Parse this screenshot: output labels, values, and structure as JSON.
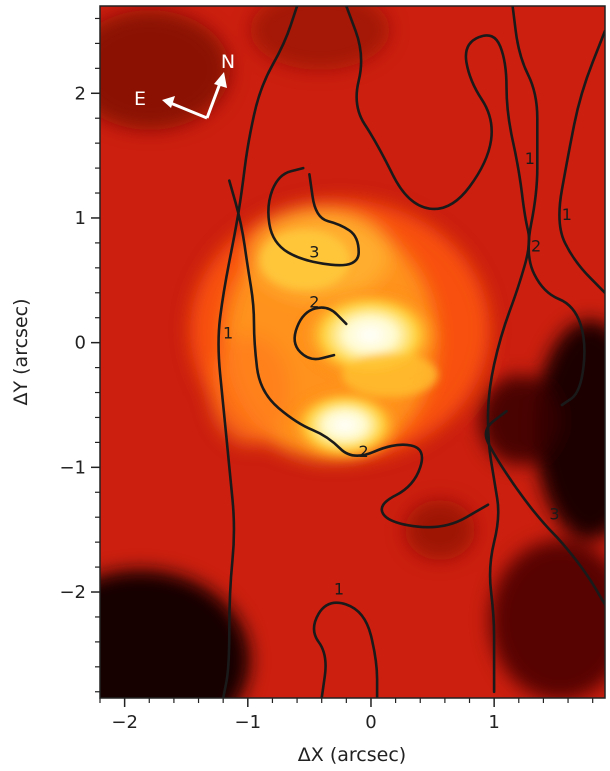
{
  "chart_data": {
    "type": "heatmap",
    "xlabel": "ΔX (arcsec)",
    "ylabel": "ΔY (arcsec)",
    "xlim": [
      -2.2,
      1.9
    ],
    "ylim": [
      -2.85,
      2.7
    ],
    "x_ticks": [
      -2,
      -1,
      0,
      1
    ],
    "y_ticks": [
      -2,
      -1,
      0,
      1,
      2
    ],
    "x_tick_labels": [
      "−2",
      "−1",
      "0",
      "1"
    ],
    "y_tick_labels": [
      "−2",
      "−1",
      "0",
      "1",
      "2"
    ],
    "colormap": "hot",
    "colors": {
      "dark": "#120000",
      "mid": "#d62410",
      "bright": "#fff2a0",
      "peak": "#ffffff"
    },
    "bright_peaks": [
      {
        "x": 0.05,
        "y": 0.05,
        "intensity": 1.0
      },
      {
        "x": -0.2,
        "y": -0.62,
        "intensity": 0.95
      }
    ],
    "compass": {
      "north_label": "N",
      "east_label": "E"
    },
    "contour_levels": [
      "1",
      "2",
      "3"
    ],
    "contours": [
      {
        "level": "1",
        "points": [
          [
            -0.6,
            2.7
          ],
          [
            -0.7,
            2.4
          ],
          [
            -0.9,
            2.05
          ],
          [
            -1.0,
            1.6
          ],
          [
            -1.05,
            1.2
          ],
          [
            -1.1,
            0.9
          ],
          [
            -1.2,
            0.4
          ],
          [
            -1.25,
            0.0
          ],
          [
            -1.2,
            -0.5
          ],
          [
            -1.15,
            -1.0
          ],
          [
            -1.1,
            -1.5
          ],
          [
            -1.15,
            -2.0
          ],
          [
            -1.15,
            -2.6
          ],
          [
            -1.2,
            -2.85
          ]
        ]
      },
      {
        "level": "1",
        "points": [
          [
            -0.2,
            2.7
          ],
          [
            -0.05,
            2.3
          ],
          [
            -0.15,
            1.9
          ],
          [
            0.05,
            1.6
          ],
          [
            0.3,
            1.1
          ],
          [
            0.65,
            1.05
          ],
          [
            0.95,
            1.45
          ],
          [
            1.0,
            1.8
          ],
          [
            0.8,
            2.1
          ],
          [
            0.75,
            2.4
          ],
          [
            1.0,
            2.5
          ],
          [
            1.1,
            2.25
          ],
          [
            1.1,
            1.85
          ],
          [
            1.2,
            1.4
          ],
          [
            1.25,
            1.0
          ],
          [
            1.3,
            0.8
          ],
          [
            1.2,
            0.45
          ],
          [
            1.05,
            0.05
          ],
          [
            0.95,
            -0.4
          ],
          [
            0.95,
            -0.8
          ],
          [
            1.0,
            -1.1
          ],
          [
            1.05,
            -1.4
          ],
          [
            0.95,
            -1.8
          ],
          [
            1.0,
            -2.2
          ],
          [
            1.0,
            -2.5
          ],
          [
            1.0,
            -2.8
          ]
        ]
      },
      {
        "level": "1",
        "points": [
          [
            -0.4,
            -2.85
          ],
          [
            -0.35,
            -2.5
          ],
          [
            -0.5,
            -2.3
          ],
          [
            -0.35,
            -2.05
          ],
          [
            -0.05,
            -2.15
          ],
          [
            0.05,
            -2.55
          ],
          [
            0.05,
            -2.85
          ]
        ]
      },
      {
        "level": "1",
        "points": [
          [
            1.9,
            2.5
          ],
          [
            1.7,
            2.0
          ],
          [
            1.6,
            1.5
          ],
          [
            1.5,
            0.95
          ],
          [
            1.65,
            0.65
          ],
          [
            1.9,
            0.4
          ]
        ]
      },
      {
        "level": "2",
        "points": [
          [
            1.15,
            2.7
          ],
          [
            1.2,
            2.3
          ],
          [
            1.35,
            2.0
          ],
          [
            1.35,
            1.6
          ],
          [
            1.35,
            1.2
          ],
          [
            1.25,
            0.7
          ],
          [
            1.4,
            0.4
          ],
          [
            1.65,
            0.3
          ],
          [
            1.75,
            0.0
          ],
          [
            1.7,
            -0.4
          ],
          [
            1.55,
            -0.5
          ]
        ]
      },
      {
        "level": "2",
        "points": [
          [
            -1.15,
            1.3
          ],
          [
            -1.05,
            0.95
          ],
          [
            -1.0,
            0.6
          ],
          [
            -0.95,
            0.3
          ],
          [
            -0.95,
            0.0
          ],
          [
            -0.9,
            -0.4
          ],
          [
            -0.6,
            -0.65
          ],
          [
            -0.35,
            -0.75
          ],
          [
            -0.15,
            -0.95
          ],
          [
            0.2,
            -0.8
          ],
          [
            0.45,
            -0.85
          ],
          [
            0.35,
            -1.15
          ],
          [
            0.05,
            -1.3
          ],
          [
            0.15,
            -1.45
          ],
          [
            0.6,
            -1.5
          ],
          [
            0.95,
            -1.3
          ]
        ]
      },
      {
        "level": "2",
        "points": [
          [
            -0.3,
            -0.1
          ],
          [
            -0.5,
            -0.15
          ],
          [
            -0.65,
            0.0
          ],
          [
            -0.55,
            0.25
          ],
          [
            -0.35,
            0.3
          ],
          [
            -0.2,
            0.15
          ]
        ]
      },
      {
        "level": "3",
        "points": [
          [
            -0.5,
            1.35
          ],
          [
            -0.45,
            1.0
          ],
          [
            -0.25,
            0.95
          ],
          [
            -0.1,
            0.85
          ],
          [
            -0.1,
            0.6
          ],
          [
            -0.55,
            0.65
          ],
          [
            -0.8,
            0.8
          ],
          [
            -0.85,
            1.1
          ],
          [
            -0.75,
            1.35
          ],
          [
            -0.55,
            1.4
          ]
        ]
      },
      {
        "level": "3",
        "points": [
          [
            1.1,
            -0.55
          ],
          [
            0.9,
            -0.7
          ],
          [
            1.0,
            -0.9
          ],
          [
            1.2,
            -1.2
          ],
          [
            1.4,
            -1.45
          ],
          [
            1.55,
            -1.6
          ],
          [
            1.75,
            -1.85
          ],
          [
            1.9,
            -2.1
          ]
        ]
      }
    ]
  }
}
